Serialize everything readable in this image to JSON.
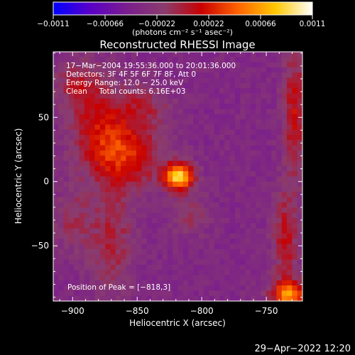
{
  "chart_data": {
    "type": "heatmap",
    "title": "Reconstructed RHESSI Image",
    "xlabel": "Heliocentric X (arcsec)",
    "ylabel": "Heliocentric Y (arcsec)",
    "xlim": [
      -915,
      -722
    ],
    "ylim": [
      -93,
      101
    ],
    "x_ticks": [
      -900,
      -850,
      -800,
      -750
    ],
    "y_ticks": [
      -50,
      0,
      50
    ],
    "x_tick_labels": [
      "−900",
      "−850",
      "−800",
      "−750"
    ],
    "y_tick_labels": [
      "−50",
      "0",
      "50"
    ],
    "colorbar": {
      "min": -0.0011,
      "max": 0.0011,
      "ticks": [
        -0.0011,
        -0.00066,
        -0.00022,
        0.00022,
        0.00066,
        0.0011
      ],
      "tick_labels": [
        "−0.0011",
        "−0.00066",
        "−0.00022",
        "0.00022",
        "0.00066",
        "0.0011"
      ],
      "unit_label": "(photons cm⁻² s⁻¹ asec⁻²)",
      "colors": [
        "#0000ff",
        "#5a00c8",
        "#7a1e8c",
        "#8a3c6e",
        "#c80000",
        "#ff6400",
        "#ffc800",
        "#ffffff"
      ]
    },
    "annotations": [
      "17−Mar−2004 19:55:36.000 to 20:01:36.000",
      "Detectors: 3F 4F 5F 6F 7F 8F, Att 0",
      "Energy Range: 12.0 − 25.0 keV",
      "Clean     Total counts: 6.16E+03"
    ],
    "peak_label": "Position of Peak = [−818,3]",
    "peak": [
      -818,
      3
    ],
    "sources": [
      {
        "x": -818,
        "y": 4,
        "sx": 8,
        "sy": 7,
        "amp": 0.00118
      },
      {
        "x": -858,
        "y": 20,
        "sx": 20,
        "sy": 18,
        "amp": 0.00055
      },
      {
        "x": -878,
        "y": 42,
        "sx": 16,
        "sy": 22,
        "amp": 0.00042
      },
      {
        "x": -895,
        "y": 75,
        "sx": 14,
        "sy": 14,
        "amp": 0.00035
      },
      {
        "x": -845,
        "y": 60,
        "sx": 14,
        "sy": 12,
        "amp": 0.0003
      },
      {
        "x": -870,
        "y": -45,
        "sx": 12,
        "sy": 28,
        "amp": 0.00036
      },
      {
        "x": -900,
        "y": -30,
        "sx": 10,
        "sy": 18,
        "amp": 0.00026
      },
      {
        "x": -810,
        "y": -25,
        "sx": 10,
        "sy": 12,
        "amp": 0.00026
      },
      {
        "x": -732,
        "y": -88,
        "sx": 10,
        "sy": 7,
        "amp": 0.0009
      },
      {
        "x": -735,
        "y": -45,
        "sx": 7,
        "sy": 26,
        "amp": 0.00045
      },
      {
        "x": -728,
        "y": 55,
        "sx": 6,
        "sy": 35,
        "amp": 0.0005
      }
    ],
    "background_level": -0.00036
  },
  "timestamp": "29−Apr−2022 12:20"
}
